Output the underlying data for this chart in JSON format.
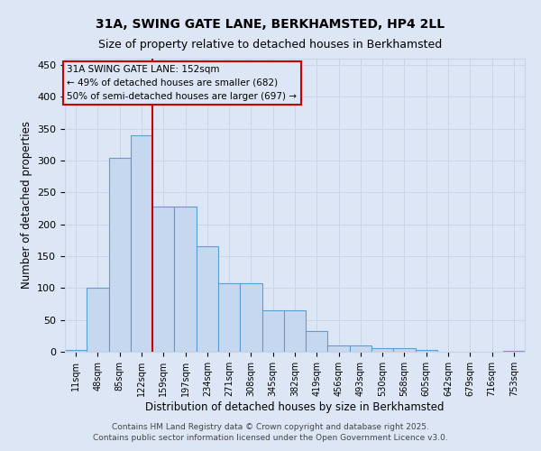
{
  "title": "31A, SWING GATE LANE, BERKHAMSTED, HP4 2LL",
  "subtitle": "Size of property relative to detached houses in Berkhamsted",
  "xlabel": "Distribution of detached houses by size in Berkhamsted",
  "ylabel": "Number of detached properties",
  "categories": [
    "11sqm",
    "48sqm",
    "85sqm",
    "122sqm",
    "159sqm",
    "197sqm",
    "234sqm",
    "271sqm",
    "308sqm",
    "345sqm",
    "382sqm",
    "419sqm",
    "456sqm",
    "493sqm",
    "530sqm",
    "568sqm",
    "605sqm",
    "642sqm",
    "679sqm",
    "716sqm",
    "753sqm"
  ],
  "values": [
    3,
    100,
    305,
    340,
    228,
    228,
    165,
    108,
    108,
    65,
    65,
    32,
    10,
    10,
    5,
    5,
    3,
    0,
    0,
    0,
    2
  ],
  "bar_color": "#c5d8f0",
  "bar_edge_color": "#5a9fd4",
  "grid_color": "#c8d4e8",
  "background_color": "#dce6f5",
  "vline_x": 3.5,
  "vline_color": "#cc0000",
  "annotation_line1": "31A SWING GATE LANE: 152sqm",
  "annotation_line2": "← 49% of detached houses are smaller (682)",
  "annotation_line3": "50% of semi-detached houses are larger (697) →",
  "annotation_box_color": "#cc0000",
  "footer_text": "Contains HM Land Registry data © Crown copyright and database right 2025.\nContains public sector information licensed under the Open Government Licence v3.0.",
  "ylim": [
    0,
    460
  ],
  "yticks": [
    0,
    50,
    100,
    150,
    200,
    250,
    300,
    350,
    400,
    450
  ],
  "title_fontsize": 10,
  "subtitle_fontsize": 9
}
